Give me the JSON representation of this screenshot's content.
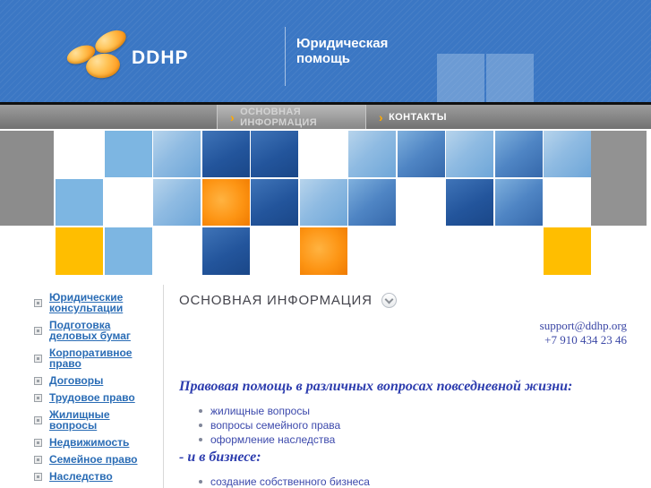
{
  "header": {
    "logo_text": "DDHP",
    "tagline_line1": "Юридическая",
    "tagline_line2": "помощь"
  },
  "nav": {
    "arrow": "›",
    "tabs": [
      {
        "label": "ОСНОВНАЯ ИНФОРМАЦИЯ",
        "active": true
      },
      {
        "label": "КОНТАКТЫ",
        "active": false
      }
    ]
  },
  "sidebar": {
    "items": [
      {
        "label": "Юридические консультации"
      },
      {
        "label": "Подготовка деловых бумаг"
      },
      {
        "label": "Корпоративное право"
      },
      {
        "label": "Договоры"
      },
      {
        "label": "Трудовое право"
      },
      {
        "label": "Жилищные вопросы"
      },
      {
        "label": "Недвижимость"
      },
      {
        "label": "Семейное право"
      },
      {
        "label": "Наследство"
      }
    ]
  },
  "main": {
    "title": "ОСНОВНАЯ ИНФОРМАЦИЯ",
    "contact": {
      "email": "support@ddhp.org",
      "phone": "+7 910 434 23 46"
    },
    "section1": {
      "heading": "Правовая помощь в различных вопросах повседневной жизни:",
      "items": [
        "жилищные вопросы",
        "вопросы семейного права",
        "оформление наследства"
      ]
    },
    "section2": {
      "heading": "- и в бизнесе:",
      "items": [
        "создание собственного бизнеса"
      ]
    }
  },
  "colors": {
    "header_blue": "#3b77c4",
    "tile_light_blue": "#7db6e2",
    "tile_orange": "#ffbe00",
    "tile_gray": "#8c8c8c",
    "nav_gray_top": "#9d9d9d",
    "nav_gray_bottom": "#717171",
    "arrow_orange": "#ffaa00",
    "link_blue": "#2a6cb5",
    "body_text_blue": "#3c49ac",
    "serif_heading_blue": "#2c3cae"
  },
  "mosaic": {
    "palette": {
      "W": "#ffffff",
      "L": "#7db6e2",
      "O": "#ffbe00",
      "P": "photo-light-blue",
      "M": "photo-medium-blue",
      "D": "photo-dark-blue",
      "Q": "photo-orange"
    },
    "rows": [
      [
        "W",
        "L",
        "P",
        "D",
        "D",
        "W",
        "P",
        "M",
        "P",
        "M",
        "P"
      ],
      [
        "L",
        "W",
        "P",
        "Q",
        "D",
        "P",
        "M",
        "W",
        "D",
        "M",
        "W"
      ],
      [
        "O",
        "L",
        "W",
        "D",
        "W",
        "Q",
        "W",
        "W",
        "W",
        "W",
        "O"
      ]
    ]
  }
}
